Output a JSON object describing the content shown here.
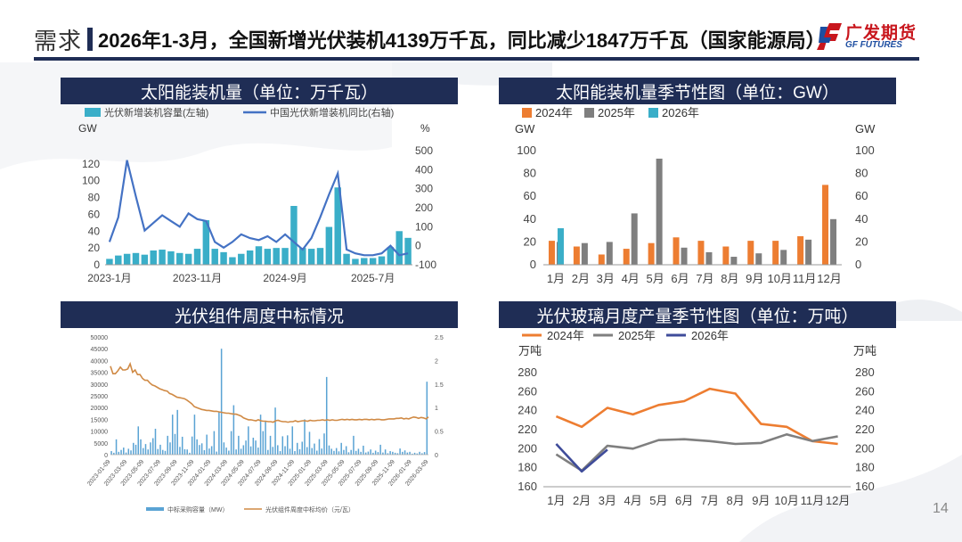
{
  "header": {
    "section": "需求",
    "title": "2026年1-3月，全国新增光伏装机4139万千瓦，同比减少1847万千瓦（国家能源局）"
  },
  "logo": {
    "cn": "广发期货",
    "en": "GF FUTURES"
  },
  "page_number": "14",
  "panels": {
    "p1_title": "太阳能装机量（单位：万千瓦）",
    "p2_title": "太阳能装机量季节性图（单位：GW）",
    "p3_title": "光伏组件周度中标情况",
    "p4_title": "光伏玻璃月度产量季节性图（单位：万吨）"
  },
  "colors": {
    "navy": "#1f2d55",
    "teal": "#3aaec8",
    "blue": "#4472c4",
    "orange": "#ed7d31",
    "gray": "#7f7f7f",
    "darkblue": "#3f4c9a",
    "barblue": "#5aa3d4",
    "linebrown": "#d08a45"
  },
  "chart_data": [
    {
      "type": "bar",
      "title": "太阳能装机量（单位：万千瓦）",
      "left_unit": "GW",
      "right_unit": "%",
      "x_ticks": [
        "2023-1月",
        "2023-11月",
        "2024-9月",
        "2025-7月"
      ],
      "ylim": [
        0,
        140
      ],
      "y2lim": [
        -100,
        500
      ],
      "y_ticks": [
        0,
        20,
        40,
        60,
        80,
        100,
        120
      ],
      "y2_ticks": [
        -100,
        0,
        100,
        200,
        300,
        400,
        500
      ],
      "series": [
        {
          "name": "光伏新增装机容量(左轴)",
          "type": "bar",
          "values": [
            7,
            11,
            13,
            14,
            12,
            17,
            18,
            16,
            14,
            13,
            19,
            53,
            19,
            15,
            9,
            13,
            17,
            22,
            19,
            20,
            20,
            70,
            20,
            19,
            20,
            45,
            92,
            13,
            7,
            8,
            8,
            10,
            21,
            40,
            32
          ]
        },
        {
          "name": "中国光伏新增装机同比(右轴)",
          "type": "line",
          "values": [
            20,
            150,
            450,
            260,
            80,
            120,
            160,
            130,
            100,
            170,
            140,
            130,
            20,
            -10,
            20,
            60,
            40,
            30,
            50,
            20,
            60,
            20,
            -20,
            40,
            150,
            270,
            380,
            -20,
            -40,
            -50,
            -50,
            -40,
            0,
            -50,
            -40
          ]
        }
      ]
    },
    {
      "type": "bar",
      "title": "太阳能装机量季节性图（单位：GW）",
      "unit_left": "GW",
      "unit_right": "GW",
      "categories": [
        "1月",
        "2月",
        "3月",
        "4月",
        "5月",
        "6月",
        "7月",
        "8月",
        "9月",
        "10月",
        "11月",
        "12月"
      ],
      "ylim": [
        0,
        100
      ],
      "y_ticks": [
        0,
        20,
        40,
        60,
        80,
        100
      ],
      "series": [
        {
          "name": "2024年",
          "values": [
            21,
            16,
            9,
            14,
            19,
            24,
            21,
            16,
            21,
            21,
            25,
            70
          ]
        },
        {
          "name": "2025年",
          "values": [
            20,
            19,
            20,
            45,
            93,
            15,
            11,
            7,
            10,
            13,
            22,
            40
          ]
        },
        {
          "name": "2026年",
          "values": [
            32,
            null,
            null,
            null,
            null,
            null,
            null,
            null,
            null,
            null,
            null,
            null
          ]
        }
      ]
    },
    {
      "type": "bar",
      "title": "光伏组件周度中标情况",
      "ylim": [
        0,
        50000
      ],
      "y2lim": [
        0,
        2.5
      ],
      "y_ticks": [
        0,
        5000,
        10000,
        15000,
        20000,
        25000,
        30000,
        35000,
        40000,
        45000,
        50000
      ],
      "y2_ticks": [
        0,
        0.5,
        1,
        1.5,
        2,
        2.5
      ],
      "x_ticks": [
        "2023-01-09",
        "2023-03-09",
        "2023-05-09",
        "2023-07-09",
        "2023-09-09",
        "2023-11-09",
        "2024-01-09",
        "2024-03-09",
        "2024-05-09",
        "2024-07-09",
        "2024-09-09",
        "2024-11-09",
        "2025-01-09",
        "2025-03-09",
        "2025-05-09",
        "2025-07-09",
        "2025-09-09",
        "2025-11-09",
        "2026-01-09",
        "2026-03-09"
      ],
      "series": [
        {
          "name": "中标采购容量（MW）",
          "type": "bar",
          "values": [
            1500,
            800,
            6500,
            1200,
            2000,
            3000,
            900,
            2500,
            1800,
            5000,
            4200,
            12000,
            6500,
            2800,
            4500,
            2200,
            5200,
            7000,
            11000,
            2400,
            4200,
            2000,
            1600,
            8000,
            5200,
            17000,
            8800,
            19000,
            3300,
            7600,
            2300,
            2200,
            800,
            7700,
            17000,
            6500,
            4100,
            4800,
            1900,
            8500,
            2600,
            3600,
            10000,
            1300,
            18000,
            45000,
            5200,
            3000,
            1700,
            10000,
            21000,
            2200,
            8000,
            2500,
            4000,
            6000,
            12000,
            3500,
            7200,
            6000,
            3000,
            17000,
            10000,
            14000,
            2000,
            8000,
            3300,
            20000,
            4000,
            1500,
            7800,
            3600,
            8200,
            2500,
            12000,
            1500,
            5000,
            2300,
            5500,
            15000,
            3200,
            9700,
            2800,
            4700,
            1700,
            6600,
            2600,
            9000,
            33000,
            3900,
            2500,
            1600,
            2800,
            1400,
            5000,
            2000,
            3600,
            1000,
            2000,
            8000,
            1600,
            2500,
            1200,
            3800,
            900,
            1300,
            2200,
            800,
            1700,
            1100,
            4200,
            900,
            2200,
            600,
            1500,
            1200,
            800,
            600,
            2600,
            1200,
            1800,
            900,
            1200,
            400,
            800,
            500,
            1200,
            600,
            1100,
            31000
          ]
        },
        {
          "name": "光伏组件周度中标均价（元/瓦）",
          "type": "line",
          "values": [
            1.88,
            1.72,
            1.72,
            1.78,
            1.86,
            1.8,
            1.8,
            1.82,
            1.93,
            1.75,
            1.8,
            1.7,
            1.7,
            1.62,
            1.58,
            1.58,
            1.52,
            1.48,
            1.46,
            1.43,
            1.4,
            1.38,
            1.36,
            1.35,
            1.3,
            1.28,
            1.25,
            1.22,
            1.21,
            1.2,
            1.19,
            1.16,
            1.12,
            1.08,
            1.02,
            1.0,
            0.98,
            0.96,
            0.95,
            0.94,
            0.94,
            0.93,
            0.92,
            0.92,
            0.91,
            0.9,
            0.89,
            0.88,
            0.88,
            0.87,
            0.86,
            0.86,
            0.84,
            0.82,
            0.78,
            0.76,
            0.74,
            0.74,
            0.73,
            0.72,
            0.74,
            0.72,
            0.71,
            0.71,
            0.7,
            0.7,
            0.69,
            0.72,
            0.73,
            0.71,
            0.7,
            0.7,
            0.69,
            0.7,
            0.7,
            0.72,
            0.7,
            0.71,
            0.72,
            0.72,
            0.71,
            0.73,
            0.72,
            0.72,
            0.73,
            0.73,
            0.74,
            0.73,
            0.74,
            0.73,
            0.74,
            0.73,
            0.73,
            0.74,
            0.75,
            0.74,
            0.75,
            0.74,
            0.75,
            0.74,
            0.74,
            0.75,
            0.74,
            0.75,
            0.75,
            0.74,
            0.75,
            0.74,
            0.75,
            0.75,
            0.74,
            0.74,
            0.75,
            0.76,
            0.76,
            0.76,
            0.77,
            0.77,
            0.78,
            0.76,
            0.77,
            0.76,
            0.78,
            0.8,
            0.79,
            0.77,
            0.79,
            0.78,
            0.76,
            0.8
          ]
        }
      ]
    },
    {
      "type": "line",
      "title": "光伏玻璃月度产量季节性图（单位：万吨）",
      "unit_left": "万吨",
      "unit_right": "万吨",
      "categories": [
        "1月",
        "2月",
        "3月",
        "4月",
        "5月",
        "6月",
        "7月",
        "8月",
        "9月",
        "10月",
        "11月",
        "12月"
      ],
      "ylim": [
        160,
        280
      ],
      "y_ticks": [
        160,
        180,
        200,
        220,
        240,
        260,
        280
      ],
      "series": [
        {
          "name": "2024年",
          "values": [
            234,
            223,
            243,
            236,
            246,
            250,
            263,
            258,
            226,
            223,
            208,
            205
          ]
        },
        {
          "name": "2025年",
          "values": [
            194,
            177,
            203,
            200,
            209,
            210,
            208,
            205,
            206,
            215,
            208,
            213
          ]
        },
        {
          "name": "2026年",
          "values": [
            205,
            176,
            199,
            null,
            null,
            null,
            null,
            null,
            null,
            null,
            null,
            null
          ]
        }
      ]
    }
  ]
}
